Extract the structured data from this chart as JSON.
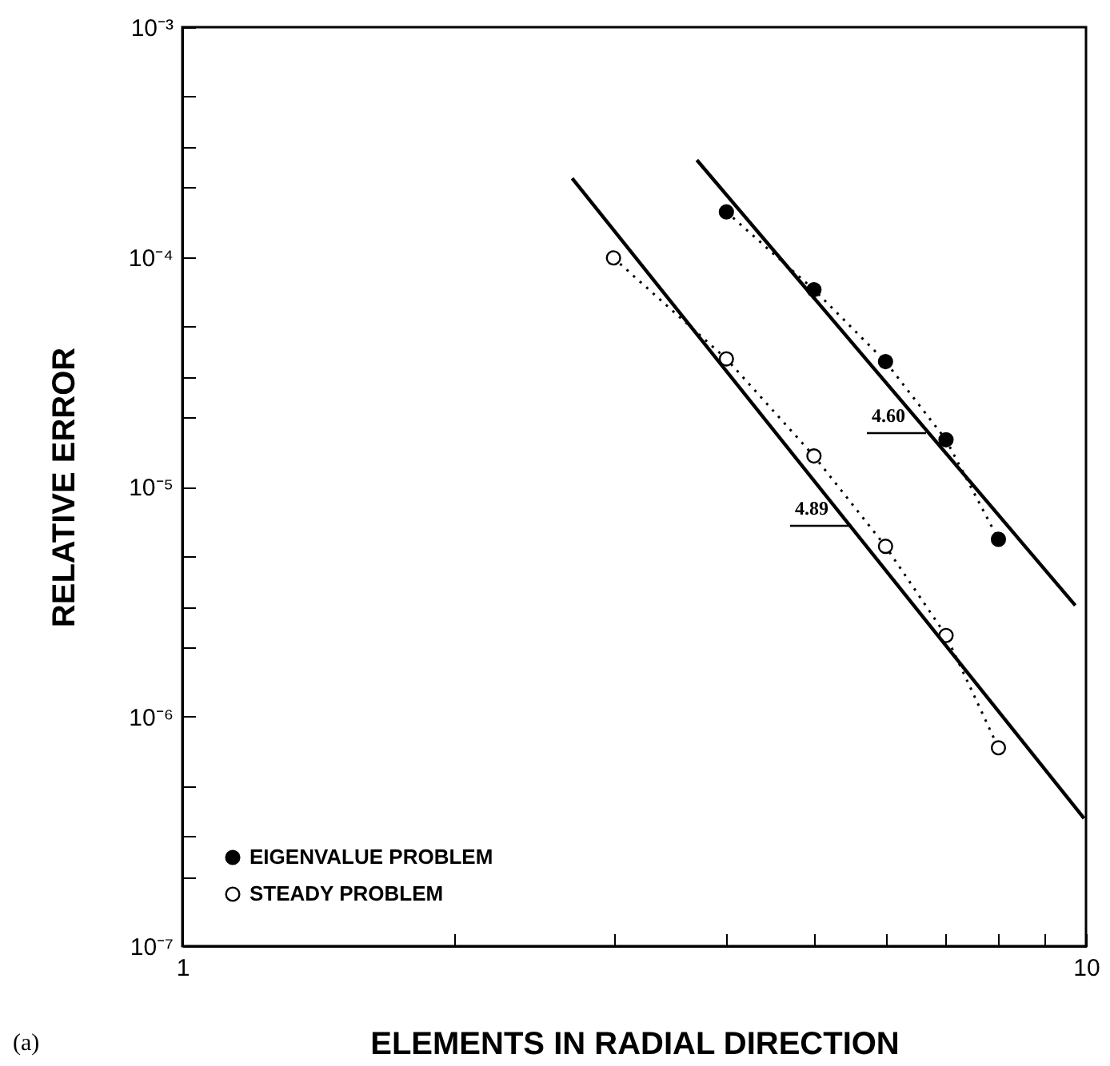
{
  "chart_data": {
    "type": "line",
    "xlabel": "ELEMENTS IN RADIAL DIRECTION",
    "ylabel": "RELATIVE ERROR",
    "log": "xy",
    "marker": "circle",
    "line_style": "dotted",
    "legend": "bottom left",
    "grid": false,
    "xlim": [
      1,
      10
    ],
    "ylim": [
      1e-07,
      0.001
    ],
    "xticks": [
      1,
      {
        "value": 2,
        "label": null
      },
      {
        "value": 3,
        "label": null
      },
      {
        "value": 4,
        "label": null
      },
      {
        "value": 5,
        "label": null
      },
      {
        "value": 6,
        "label": null
      },
      {
        "value": 7,
        "label": null
      },
      {
        "value": 8,
        "label": null
      },
      {
        "value": 9,
        "label": null
      },
      10
    ],
    "yticks": [
      {
        "value": 1e-07,
        "label": "10⁻⁷"
      },
      {
        "value": 2e-07,
        "label": null
      },
      {
        "value": 3e-07,
        "label": null
      },
      {
        "value": 5e-07,
        "label": null
      },
      {
        "value": 1e-06,
        "label": "10⁻⁶"
      },
      {
        "value": 2e-06,
        "label": null
      },
      {
        "value": 3e-06,
        "label": null
      },
      {
        "value": 5e-06,
        "label": null
      },
      {
        "value": 1e-05,
        "label": "10⁻⁵"
      },
      {
        "value": 2e-05,
        "label": null
      },
      {
        "value": 3e-05,
        "label": null
      },
      {
        "value": 5e-05,
        "label": null
      },
      {
        "value": 0.0001,
        "label": "10⁻⁴"
      },
      {
        "value": 0.0002,
        "label": null
      },
      {
        "value": 0.0003,
        "label": null
      },
      {
        "value": 0.0005,
        "label": null
      },
      {
        "value": 0.001,
        "label": "10⁻³"
      }
    ],
    "series": [
      {
        "name": "EIGENVALUE PROBLEM",
        "color": "#000000",
        "x": [
          4,
          5,
          6,
          7,
          8
        ],
        "values": [
          0.000157,
          7.2e-05,
          3.5e-05,
          1.6e-05,
          5.9e-06
        ]
      },
      {
        "name": "STEADY PROBLEM",
        "color": "#000000",
        "x": [
          3,
          4,
          5,
          6,
          7,
          8
        ],
        "values": [
          9.9e-05,
          3.6e-05,
          1.36e-05,
          5.5e-06,
          2.25e-06,
          7.3e-07
        ]
      },
      {
        "color": "#000000",
        "marker": "none",
        "line_style": "solid",
        "x": [
          3.71,
          9.73
        ],
        "values": [
          0.000264,
          3.04e-06
        ]
      },
      {
        "color": "#000000",
        "marker": "none",
        "line_style": "solid",
        "x": [
          2.7,
          9.95
        ],
        "values": [
          0.00022,
          3.6e-07
        ]
      }
    ],
    "annotations": [
      "(a)",
      "4.60",
      "4.89"
    ]
  }
}
